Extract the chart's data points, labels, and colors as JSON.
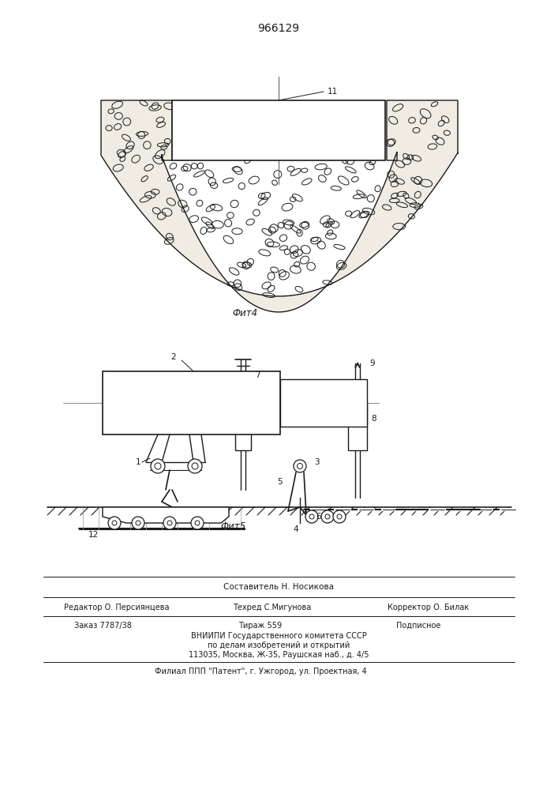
{
  "patent_number": "966129",
  "fig4_label": "Фит4",
  "fig5_label": "Фит5",
  "footer_line1": "Составитель Н. Носикова",
  "footer_line2_left": "Редактор О. Персиянцева",
  "footer_line2_mid": "Техред С.Мигунова",
  "footer_line2_right": "Корректор О. Билак",
  "footer_line3_left": "Заказ 7787/38",
  "footer_line3_mid": "Тираж 559",
  "footer_line3_right": "Подписное",
  "footer_line4": "ВНИИПИ Государственного комитета СССР",
  "footer_line5": "по делам изобретений и открытий",
  "footer_line6": "113035, Москва, Ж-35, Раушская наб., д. 4/5",
  "footer_line7": "Филиал ППП \"Патент\", г. Ужгород, ул. Проектная, 4",
  "bg_color": "#ffffff",
  "line_color": "#1a1a1a",
  "text_color": "#1a1a1a"
}
